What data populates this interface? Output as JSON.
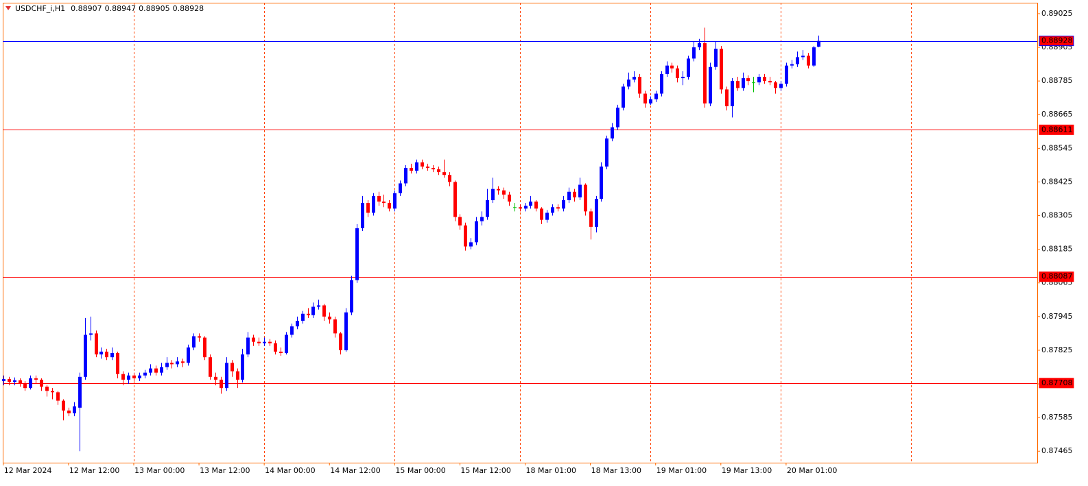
{
  "chart_data": {
    "type": "candlestick",
    "symbol": "USDCHF_i,H1",
    "open": [
      0.87715,
      0.87722,
      0.87712,
      0.87718,
      0.87705,
      0.8769,
      0.87725,
      0.8772,
      0.87695,
      0.8768,
      0.87675,
      0.87645,
      0.8761,
      0.876,
      0.8762,
      0.8773,
      0.8788,
      0.87885,
      0.8781,
      0.8782,
      0.878,
      0.87815,
      0.8774,
      0.8772,
      0.87735,
      0.87725,
      0.87735,
      0.87745,
      0.8776,
      0.87745,
      0.87765,
      0.8778,
      0.87775,
      0.87785,
      0.8778,
      0.87835,
      0.87875,
      0.8787,
      0.878,
      0.8773,
      0.8772,
      0.8769,
      0.8778,
      0.8775,
      0.8772,
      0.8781,
      0.8787,
      0.87855,
      0.8785,
      0.87855,
      0.8785,
      0.8782,
      0.87815,
      0.8788,
      0.8791,
      0.8793,
      0.87955,
      0.8795,
      0.8798,
      0.87985,
      0.87945,
      0.87935,
      0.87885,
      0.87825,
      0.8796,
      0.88075,
      0.8826,
      0.8835,
      0.88315,
      0.88375,
      0.88355,
      0.8835,
      0.8833,
      0.88385,
      0.8842,
      0.88475,
      0.88465,
      0.88495,
      0.8848,
      0.88475,
      0.8847,
      0.8846,
      0.8845,
      0.88425,
      0.883,
      0.8827,
      0.88195,
      0.8821,
      0.88285,
      0.883,
      0.8836,
      0.884,
      0.88395,
      0.8838,
      0.88335,
      0.88335,
      0.8833,
      0.8834,
      0.88355,
      0.8833,
      0.8829,
      0.88315,
      0.88335,
      0.8833,
      0.8836,
      0.8839,
      0.8837,
      0.88415,
      0.8832,
      0.88265,
      0.88365,
      0.8848,
      0.8858,
      0.8862,
      0.8869,
      0.88765,
      0.8879,
      0.888,
      0.8874,
      0.88705,
      0.8872,
      0.8874,
      0.8881,
      0.8884,
      0.8883,
      0.88795,
      0.888,
      0.88865,
      0.88905,
      0.8892,
      0.88705,
      0.88835,
      0.889,
      0.88755,
      0.88695,
      0.88785,
      0.8876,
      0.88795,
      0.8878,
      0.8878,
      0.888,
      0.88785,
      0.8878,
      0.8876,
      0.88775,
      0.8884,
      0.88845,
      0.8887,
      0.88875,
      0.8884,
      0.88907
    ],
    "high": [
      0.87735,
      0.8773,
      0.87728,
      0.87725,
      0.87715,
      0.87735,
      0.87735,
      0.87725,
      0.877,
      0.8769,
      0.8768,
      0.8765,
      0.8762,
      0.8764,
      0.87745,
      0.8794,
      0.87945,
      0.87895,
      0.87835,
      0.8783,
      0.87835,
      0.8782,
      0.8775,
      0.87745,
      0.87745,
      0.87745,
      0.87755,
      0.87775,
      0.8777,
      0.8778,
      0.878,
      0.8779,
      0.878,
      0.87795,
      0.87845,
      0.87885,
      0.87885,
      0.87875,
      0.8781,
      0.87745,
      0.8773,
      0.878,
      0.8779,
      0.8776,
      0.8783,
      0.8789,
      0.8788,
      0.8787,
      0.8787,
      0.87865,
      0.8786,
      0.87835,
      0.8789,
      0.8792,
      0.87945,
      0.87965,
      0.87975,
      0.87995,
      0.88005,
      0.8799,
      0.8796,
      0.87945,
      0.8789,
      0.87975,
      0.8809,
      0.88275,
      0.88375,
      0.8836,
      0.88385,
      0.8839,
      0.8838,
      0.8836,
      0.88395,
      0.8843,
      0.88485,
      0.8849,
      0.88505,
      0.88505,
      0.8849,
      0.88485,
      0.8848,
      0.88505,
      0.8846,
      0.8843,
      0.8831,
      0.8828,
      0.88225,
      0.883,
      0.8832,
      0.884,
      0.8844,
      0.8841,
      0.88405,
      0.8839,
      0.8835,
      0.88345,
      0.8835,
      0.88375,
      0.8836,
      0.88335,
      0.88325,
      0.88345,
      0.88345,
      0.88375,
      0.88405,
      0.884,
      0.8844,
      0.8842,
      0.8833,
      0.88375,
      0.88495,
      0.8859,
      0.88635,
      0.887,
      0.88775,
      0.88815,
      0.8882,
      0.8881,
      0.8875,
      0.8873,
      0.8875,
      0.8882,
      0.88855,
      0.8885,
      0.8884,
      0.8882,
      0.88875,
      0.88925,
      0.88935,
      0.88975,
      0.8885,
      0.88925,
      0.8891,
      0.88765,
      0.88795,
      0.888,
      0.88815,
      0.88805,
      0.888,
      0.8881,
      0.8881,
      0.888,
      0.88785,
      0.88785,
      0.8885,
      0.8886,
      0.8889,
      0.88895,
      0.88885,
      0.8891,
      0.88947
    ],
    "low": [
      0.877,
      0.877,
      0.877,
      0.87695,
      0.8768,
      0.87685,
      0.87705,
      0.8768,
      0.8766,
      0.8765,
      0.8763,
      0.87575,
      0.8759,
      0.8759,
      0.87465,
      0.8772,
      0.8786,
      0.878,
      0.87795,
      0.8779,
      0.8779,
      0.87725,
      0.877,
      0.87705,
      0.87715,
      0.87715,
      0.87725,
      0.87735,
      0.87735,
      0.87735,
      0.87755,
      0.8776,
      0.87765,
      0.87765,
      0.8777,
      0.87825,
      0.87855,
      0.8779,
      0.8772,
      0.877,
      0.8767,
      0.8768,
      0.8773,
      0.8769,
      0.8771,
      0.878,
      0.8784,
      0.8784,
      0.8784,
      0.8784,
      0.8781,
      0.87805,
      0.8781,
      0.8787,
      0.879,
      0.8792,
      0.8794,
      0.8794,
      0.8797,
      0.8793,
      0.8792,
      0.8787,
      0.8781,
      0.8782,
      0.8795,
      0.88065,
      0.8825,
      0.883,
      0.88305,
      0.8834,
      0.88335,
      0.8832,
      0.8832,
      0.88375,
      0.8841,
      0.88455,
      0.88455,
      0.8847,
      0.88465,
      0.8846,
      0.8845,
      0.8844,
      0.8841,
      0.88285,
      0.88255,
      0.8818,
      0.88185,
      0.882,
      0.8827,
      0.8829,
      0.8835,
      0.8838,
      0.88365,
      0.8834,
      0.8832,
      0.8832,
      0.8832,
      0.8833,
      0.8832,
      0.88275,
      0.8828,
      0.88305,
      0.8832,
      0.8832,
      0.8835,
      0.88355,
      0.8836,
      0.88305,
      0.8822,
      0.88245,
      0.88355,
      0.8847,
      0.8857,
      0.8861,
      0.8868,
      0.88755,
      0.8878,
      0.88725,
      0.8869,
      0.887,
      0.8871,
      0.8873,
      0.888,
      0.88815,
      0.8878,
      0.8877,
      0.8879,
      0.88855,
      0.88895,
      0.8869,
      0.88695,
      0.88825,
      0.8874,
      0.8868,
      0.88655,
      0.8875,
      0.8875,
      0.8877,
      0.88745,
      0.8877,
      0.88775,
      0.8877,
      0.8874,
      0.8875,
      0.88765,
      0.8883,
      0.88835,
      0.8886,
      0.8883,
      0.88835,
      0.88905
    ],
    "close": [
      0.87722,
      0.87712,
      0.87718,
      0.87705,
      0.8769,
      0.87725,
      0.8772,
      0.87695,
      0.8768,
      0.87675,
      0.87645,
      0.8761,
      0.876,
      0.87625,
      0.8773,
      0.8788,
      0.87885,
      0.8781,
      0.8782,
      0.878,
      0.87815,
      0.8774,
      0.8772,
      0.87735,
      0.87725,
      0.87735,
      0.87745,
      0.8776,
      0.87745,
      0.87765,
      0.8778,
      0.87775,
      0.87785,
      0.8778,
      0.87835,
      0.87875,
      0.8787,
      0.878,
      0.8773,
      0.8772,
      0.8769,
      0.8778,
      0.8775,
      0.8772,
      0.8781,
      0.8787,
      0.87855,
      0.8785,
      0.87855,
      0.8785,
      0.8782,
      0.87815,
      0.8788,
      0.8791,
      0.8793,
      0.87955,
      0.8795,
      0.8798,
      0.87985,
      0.87945,
      0.87935,
      0.87885,
      0.87825,
      0.8796,
      0.88075,
      0.8826,
      0.8835,
      0.88315,
      0.88375,
      0.88355,
      0.8835,
      0.8833,
      0.88385,
      0.8842,
      0.88475,
      0.88465,
      0.88495,
      0.8848,
      0.88475,
      0.8847,
      0.8846,
      0.8845,
      0.88425,
      0.883,
      0.8827,
      0.88195,
      0.8821,
      0.88285,
      0.883,
      0.8836,
      0.884,
      0.88395,
      0.8838,
      0.88355,
      0.88335,
      0.8833,
      0.8834,
      0.88355,
      0.8833,
      0.8829,
      0.88315,
      0.88335,
      0.8833,
      0.8836,
      0.8839,
      0.8837,
      0.88415,
      0.8832,
      0.88265,
      0.88365,
      0.8848,
      0.8858,
      0.8862,
      0.8869,
      0.88765,
      0.8879,
      0.888,
      0.8874,
      0.88705,
      0.8872,
      0.8874,
      0.8881,
      0.8884,
      0.8883,
      0.88795,
      0.888,
      0.88865,
      0.88905,
      0.8892,
      0.88705,
      0.88835,
      0.889,
      0.88755,
      0.88695,
      0.88785,
      0.8876,
      0.88795,
      0.88785,
      0.8878,
      0.888,
      0.88785,
      0.8878,
      0.8876,
      0.88775,
      0.8884,
      0.88845,
      0.8887,
      0.88875,
      0.8884,
      0.88905,
      0.88928
    ],
    "up_color": "#0000ff",
    "down_color": "#ff0000",
    "doji_color": "#00c000",
    "ylim": [
      0.87424,
      0.89064
    ],
    "yticks": [
      0.89025,
      0.88905,
      0.88785,
      0.88665,
      0.88545,
      0.88425,
      0.88305,
      0.88185,
      0.88065,
      0.87945,
      0.87825,
      0.87705,
      0.87585,
      0.87465
    ],
    "xlim": [
      -0.1,
      190.2
    ],
    "xticks": [
      {
        "value": 0,
        "label": "12 Mar 2024"
      },
      {
        "value": 12,
        "label": "12 Mar 12:00"
      },
      {
        "value": 24,
        "label": "13 Mar 00:00"
      },
      {
        "value": 36,
        "label": "13 Mar 12:00"
      },
      {
        "value": 48,
        "label": "14 Mar 00:00"
      },
      {
        "value": 60,
        "label": "14 Mar 12:00"
      },
      {
        "value": 72,
        "label": "15 Mar 00:00"
      },
      {
        "value": 84,
        "label": "15 Mar 12:00"
      },
      {
        "value": 96,
        "label": "18 Mar 01:00"
      },
      {
        "value": 108,
        "label": "18 Mar 13:00"
      },
      {
        "value": 120,
        "label": "19 Mar 01:00"
      },
      {
        "value": 132,
        "label": "19 Mar 13:00"
      },
      {
        "value": 144,
        "label": "20 Mar 01:00"
      }
    ],
    "xgrid": [
      24,
      48,
      72,
      95,
      119,
      143,
      167
    ],
    "grid_color": "#ff4500",
    "levels": [
      {
        "value": 0.88611,
        "color": "#ff0000"
      },
      {
        "value": 0.88087,
        "color": "#ff0000"
      },
      {
        "value": 0.87708,
        "color": "#ff0000"
      }
    ],
    "price_line_color": "#0000ff"
  }
}
